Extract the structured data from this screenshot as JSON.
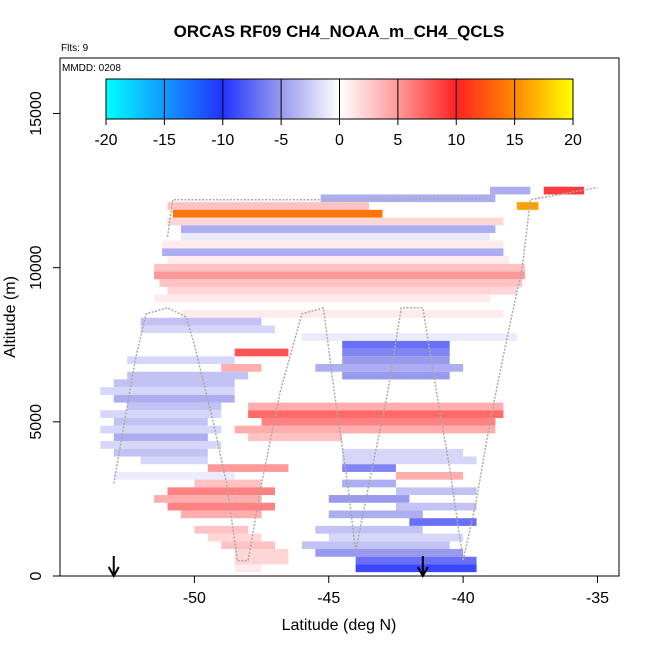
{
  "chart_data": {
    "type": "heatmap",
    "title": "ORCAS RF09 CH4_NOAA_m_CH4_QCLS",
    "flts_label": "Flts: 9",
    "mmdd_label": "MMDD: 0208",
    "xlabel": "Latitude (deg N)",
    "ylabel": "Altitude (m)",
    "xlim": [
      -55,
      -34.2
    ],
    "ylim": [
      0,
      16800
    ],
    "x_ticks": [
      -50,
      -45,
      -40,
      -35
    ],
    "x_tick_labels": [
      "-50",
      "-45",
      "-40",
      "-35"
    ],
    "y_ticks": [
      0,
      5000,
      10000,
      15000
    ],
    "y_tick_labels": [
      "0",
      "5000",
      "10000",
      "15000"
    ],
    "colorbar": {
      "min": -20,
      "max": 20,
      "ticks": [
        -20,
        -15,
        -10,
        -5,
        0,
        5,
        10,
        15,
        20
      ],
      "tick_labels": [
        "-20",
        "-15",
        "-10",
        "-5",
        "0",
        "5",
        "10",
        "15",
        "20"
      ],
      "stops": [
        {
          "v": -20,
          "color": "#00ffff"
        },
        {
          "v": -10,
          "color": "#2233ff"
        },
        {
          "v": -5,
          "color": "#9999ee"
        },
        {
          "v": 0,
          "color": "#ffffff"
        },
        {
          "v": 5,
          "color": "#ff9999"
        },
        {
          "v": 10,
          "color": "#ff2222"
        },
        {
          "v": 15,
          "color": "#ff8800"
        },
        {
          "v": 20,
          "color": "#ffff00"
        }
      ]
    },
    "arrows_lat": [
      -53.0,
      -41.5
    ],
    "rows": [
      {
        "y": 12500,
        "x0": -39.0,
        "x1": -37.5,
        "v": -4
      },
      {
        "y": 12500,
        "x0": -37.0,
        "x1": -35.5,
        "v": 9
      },
      {
        "y": 12250,
        "x0": -45.3,
        "x1": -38.8,
        "v": -4
      },
      {
        "y": 12000,
        "x0": -51.0,
        "x1": -43.5,
        "v": 3
      },
      {
        "y": 12000,
        "x0": -38.0,
        "x1": -37.2,
        "v": 16
      },
      {
        "y": 11750,
        "x0": -50.8,
        "x1": -43.0,
        "v": 14
      },
      {
        "y": 11500,
        "x0": -51.0,
        "x1": -38.5,
        "v": 2
      },
      {
        "y": 11250,
        "x0": -50.5,
        "x1": -38.8,
        "v": -4
      },
      {
        "y": 11000,
        "x0": -50.5,
        "x1": -39.0,
        "v": -1
      },
      {
        "y": 10750,
        "x0": -51.2,
        "x1": -38.5,
        "v": 1
      },
      {
        "y": 10500,
        "x0": -51.2,
        "x1": -38.5,
        "v": -4
      },
      {
        "y": 10250,
        "x0": -51.0,
        "x1": -38.3,
        "v": 1
      },
      {
        "y": 10000,
        "x0": -51.5,
        "x1": -37.7,
        "v": 3
      },
      {
        "y": 9750,
        "x0": -51.5,
        "x1": -37.7,
        "v": 5
      },
      {
        "y": 9500,
        "x0": -51.3,
        "x1": -37.8,
        "v": 3
      },
      {
        "y": 9250,
        "x0": -51.0,
        "x1": -38.0,
        "v": 2
      },
      {
        "y": 9000,
        "x0": -51.5,
        "x1": -39.0,
        "v": 1
      },
      {
        "y": 8500,
        "x0": -50.5,
        "x1": -38.5,
        "v": 1
      },
      {
        "y": 8250,
        "x0": -52.0,
        "x1": -47.5,
        "v": -3
      },
      {
        "y": 8000,
        "x0": -52.0,
        "x1": -47.0,
        "v": -2
      },
      {
        "y": 7750,
        "x0": -46.0,
        "x1": -38.0,
        "v": -1
      },
      {
        "y": 7500,
        "x0": -44.5,
        "x1": -40.5,
        "v": -7
      },
      {
        "y": 7250,
        "x0": -48.5,
        "x1": -46.5,
        "v": 8
      },
      {
        "y": 7250,
        "x0": -44.5,
        "x1": -40.5,
        "v": -6
      },
      {
        "y": 7000,
        "x0": -52.5,
        "x1": -48.5,
        "v": -2
      },
      {
        "y": 7000,
        "x0": -44.5,
        "x1": -40.5,
        "v": -5
      },
      {
        "y": 6750,
        "x0": -49.0,
        "x1": -47.5,
        "v": 4
      },
      {
        "y": 6750,
        "x0": -45.5,
        "x1": -40.0,
        "v": -4
      },
      {
        "y": 6500,
        "x0": -52.5,
        "x1": -48.0,
        "v": -3
      },
      {
        "y": 6500,
        "x0": -44.5,
        "x1": -40.5,
        "v": -5
      },
      {
        "y": 6250,
        "x0": -53.0,
        "x1": -48.5,
        "v": -3
      },
      {
        "y": 6000,
        "x0": -53.5,
        "x1": -48.5,
        "v": -2
      },
      {
        "y": 5750,
        "x0": -53.0,
        "x1": -48.5,
        "v": -4
      },
      {
        "y": 5500,
        "x0": -52.5,
        "x1": -49.0,
        "v": -3
      },
      {
        "y": 5500,
        "x0": -48.0,
        "x1": -38.5,
        "v": 4
      },
      {
        "y": 5250,
        "x0": -53.5,
        "x1": -49.0,
        "v": -2
      },
      {
        "y": 5250,
        "x0": -48.0,
        "x1": -38.5,
        "v": 7
      },
      {
        "y": 5000,
        "x0": -53.0,
        "x1": -49.5,
        "v": -3
      },
      {
        "y": 5000,
        "x0": -47.5,
        "x1": -38.8,
        "v": 6
      },
      {
        "y": 4750,
        "x0": -53.5,
        "x1": -49.0,
        "v": -2
      },
      {
        "y": 4750,
        "x0": -48.5,
        "x1": -38.8,
        "v": 4
      },
      {
        "y": 4500,
        "x0": -53.0,
        "x1": -49.5,
        "v": -4
      },
      {
        "y": 4500,
        "x0": -48.0,
        "x1": -44.5,
        "v": 3
      },
      {
        "y": 4250,
        "x0": -53.5,
        "x1": -49.0,
        "v": -2
      },
      {
        "y": 4000,
        "x0": -53.0,
        "x1": -49.5,
        "v": -3
      },
      {
        "y": 4000,
        "x0": -44.5,
        "x1": -40.0,
        "v": -2
      },
      {
        "y": 3750,
        "x0": -52.0,
        "x1": -49.5,
        "v": -2
      },
      {
        "y": 3750,
        "x0": -44.5,
        "x1": -39.5,
        "v": -2
      },
      {
        "y": 3500,
        "x0": -49.5,
        "x1": -46.5,
        "v": 5
      },
      {
        "y": 3500,
        "x0": -44.5,
        "x1": -42.5,
        "v": -6
      },
      {
        "y": 3250,
        "x0": -53.0,
        "x1": -48.5,
        "v": -1
      },
      {
        "y": 3250,
        "x0": -42.5,
        "x1": -40.0,
        "v": 4
      },
      {
        "y": 3000,
        "x0": -50.0,
        "x1": -47.5,
        "v": 3
      },
      {
        "y": 3000,
        "x0": -44.5,
        "x1": -42.5,
        "v": -4
      },
      {
        "y": 2750,
        "x0": -42.5,
        "x1": -39.5,
        "v": -3
      },
      {
        "y": 2750,
        "x0": -51.0,
        "x1": -47.0,
        "v": 6
      },
      {
        "y": 2500,
        "x0": -51.5,
        "x1": -47.5,
        "v": 4
      },
      {
        "y": 2500,
        "x0": -45.0,
        "x1": -42.0,
        "v": -5
      },
      {
        "y": 2250,
        "x0": -51.0,
        "x1": -47.0,
        "v": 6
      },
      {
        "y": 2250,
        "x0": -42.5,
        "x1": -39.5,
        "v": -3
      },
      {
        "y": 2000,
        "x0": -50.5,
        "x1": -47.5,
        "v": 4
      },
      {
        "y": 2000,
        "x0": -45.0,
        "x1": -41.5,
        "v": -4
      },
      {
        "y": 1750,
        "x0": -42.0,
        "x1": -39.5,
        "v": -7
      },
      {
        "y": 1500,
        "x0": -50.0,
        "x1": -48.0,
        "v": 3
      },
      {
        "y": 1500,
        "x0": -45.5,
        "x1": -41.5,
        "v": -3
      },
      {
        "y": 1250,
        "x0": -49.5,
        "x1": -47.5,
        "v": 2
      },
      {
        "y": 1250,
        "x0": -45.0,
        "x1": -40.0,
        "v": -2
      },
      {
        "y": 1000,
        "x0": -49.0,
        "x1": -47.0,
        "v": 3
      },
      {
        "y": 1000,
        "x0": -46.0,
        "x1": -40.5,
        "v": -3
      },
      {
        "y": 750,
        "x0": -48.5,
        "x1": -46.5,
        "v": 2
      },
      {
        "y": 750,
        "x0": -45.5,
        "x1": -40.0,
        "v": -5
      },
      {
        "y": 500,
        "x0": -48.5,
        "x1": -46.5,
        "v": 2
      },
      {
        "y": 500,
        "x0": -44.0,
        "x1": -39.5,
        "v": -7
      },
      {
        "y": 250,
        "x0": -48.5,
        "x1": -47.5,
        "v": 1
      },
      {
        "y": 250,
        "x0": -44.0,
        "x1": -39.5,
        "v": -9
      }
    ],
    "flight_track": [
      [
        -53.0,
        3000
      ],
      [
        -52.6,
        5000
      ],
      [
        -52.2,
        7000
      ],
      [
        -51.8,
        8500
      ],
      [
        -51.0,
        8700
      ],
      [
        -50.3,
        8400
      ],
      [
        -50.0,
        7500
      ],
      [
        -49.3,
        5000
      ],
      [
        -48.8,
        3000
      ],
      [
        -48.4,
        500
      ],
      [
        -48.0,
        500
      ],
      [
        -47.5,
        3000
      ],
      [
        -46.8,
        6000
      ],
      [
        -46.0,
        8500
      ],
      [
        -45.2,
        8700
      ],
      [
        -44.8,
        6000
      ],
      [
        -44.3,
        3000
      ],
      [
        -44.0,
        800
      ],
      [
        -43.5,
        3000
      ],
      [
        -42.8,
        6000
      ],
      [
        -42.3,
        8700
      ],
      [
        -41.5,
        8700
      ],
      [
        -41.0,
        6000
      ],
      [
        -40.5,
        3500
      ],
      [
        -40.0,
        500
      ],
      [
        -39.5,
        2500
      ],
      [
        -39.0,
        5000
      ],
      [
        -38.3,
        8000
      ],
      [
        -37.8,
        10000
      ],
      [
        -37.5,
        12200
      ],
      [
        -35.0,
        12600
      ]
    ],
    "upper_track": [
      [
        -51.0,
        11000
      ],
      [
        -50.8,
        12200
      ],
      [
        -47.0,
        12200
      ],
      [
        -43.0,
        12200
      ],
      [
        -39.0,
        12250
      ]
    ]
  }
}
